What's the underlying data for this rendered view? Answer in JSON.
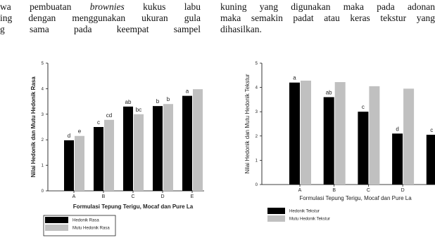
{
  "text": {
    "left_lines": [
      [
        "wa pembuatan ",
        "brownies",
        " kukus labu"
      ],
      [
        "ing dengan menggunakan ukuran gula"
      ],
      [
        "g sama pada keempat sampel"
      ]
    ],
    "right_lines": [
      [
        "kuning yang digunakan maka pada adonan"
      ],
      [
        "maka semakin padat atau keras tekstur yang"
      ],
      [
        "dihasilkan."
      ]
    ]
  },
  "chart_data": [
    {
      "type": "bar",
      "y_label": "Nilai Hedonik dan Mutu Hedonik Rasa",
      "x_label": "Formulasi Tepung Terigu, Mocaf dan Pure La",
      "categories": [
        "A",
        "B",
        "C",
        "D",
        "E"
      ],
      "series": [
        {
          "name": "Hedonik Rasa",
          "color": "#000000",
          "values": [
            1.98,
            2.5,
            3.3,
            3.32,
            3.72
          ],
          "letters": [
            "d",
            "c",
            "ab",
            "b",
            "a"
          ]
        },
        {
          "name": "Mutu Hedonik Rasa",
          "color": "#c0c0c0",
          "values": [
            2.15,
            2.78,
            3.0,
            3.4,
            3.98
          ],
          "letters": [
            "e",
            "cd",
            "bc",
            "b",
            null
          ]
        }
      ],
      "ylim": [
        0,
        5
      ],
      "yticks": [
        0,
        1,
        2,
        3,
        4,
        5
      ]
    },
    {
      "type": "bar",
      "y_label": "Nilai Hedonik dan Mutu Hedonik Tekstur",
      "x_label": "Formulasi Tepung Terigu, Mocaf dan Pure La",
      "categories": [
        "A",
        "B",
        "C",
        "D",
        null
      ],
      "series": [
        {
          "name": "Hedonik Tekstur",
          "color": "#000000",
          "values": [
            4.2,
            3.6,
            3.0,
            2.1,
            2.05
          ],
          "letters": [
            "a",
            "ab",
            "c",
            "d",
            "c"
          ]
        },
        {
          "name": "Mutu Hedonik Tekstur",
          "color": "#c0c0c0",
          "values": [
            4.28,
            4.22,
            4.05,
            3.95,
            null
          ],
          "letters": [
            null,
            null,
            null,
            null,
            null
          ]
        }
      ],
      "ylim": [
        0,
        5
      ],
      "yticks": [
        0,
        1,
        2,
        3,
        4,
        5
      ]
    }
  ]
}
